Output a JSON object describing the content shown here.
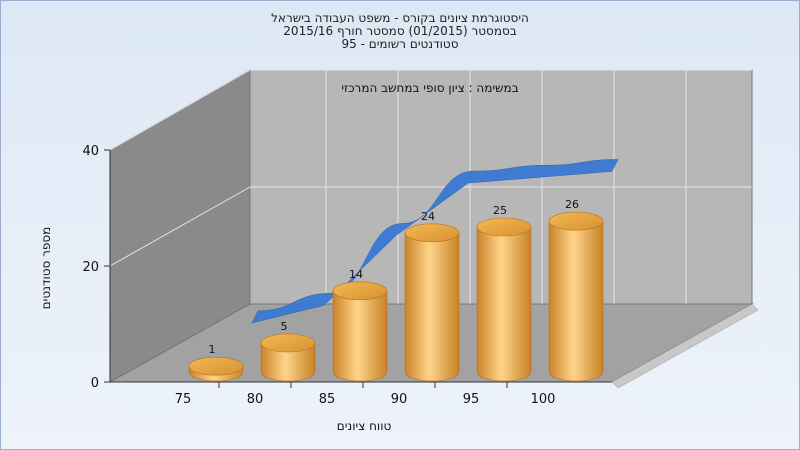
{
  "chart_data": {
    "type": "bar",
    "title_lines": [
      "היסטוגרמת ציונים בקורס - משפט העבודה בישראל",
      "בסמסטר  (01/2015)  סמסטר חורף 2015/16",
      "סטודנטים רשומים - 95"
    ],
    "legend_label": "במשימה : ציון סופי במחשב המרכזי",
    "xlabel": "טווח ציונים",
    "ylabel": "מספר סטודנטים",
    "categories": [
      "75",
      "80",
      "85",
      "90",
      "95",
      "100"
    ],
    "bar_values": [
      1,
      5,
      14,
      24,
      25,
      26
    ],
    "cumulative_line": [
      5,
      8,
      20,
      29,
      30,
      31
    ],
    "ylim": [
      0,
      40
    ],
    "yticks": [
      0,
      20,
      40
    ],
    "colors": {
      "bar": "#e2a03c",
      "bar_highlight": "#ffd890",
      "bar_dark": "#b8741c",
      "line": "#3a78d4",
      "back_wall": "#b7b7b7",
      "side_wall": "#8a8a8a",
      "floor": "#a4a4a4"
    }
  }
}
